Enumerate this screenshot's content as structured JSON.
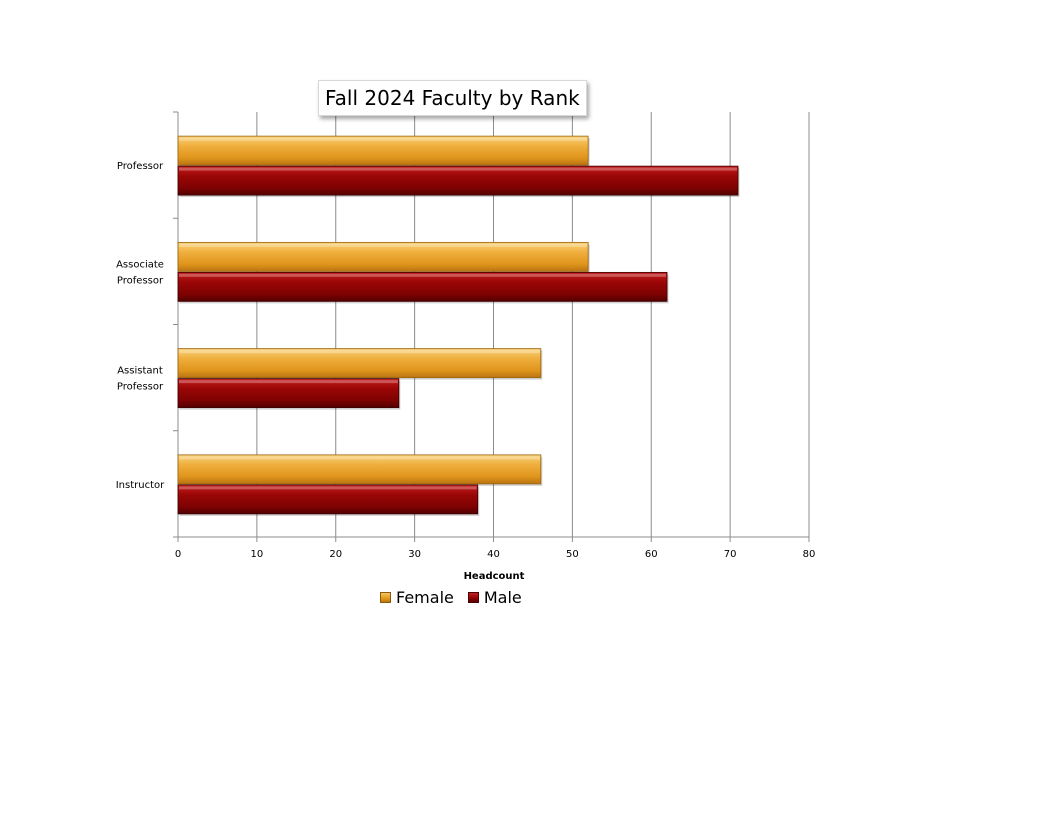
{
  "chart_data": {
    "type": "bar",
    "orientation": "horizontal",
    "title": "Fall 2024 Faculty by Rank",
    "xlabel": "Headcount",
    "ylabel": "",
    "categories": [
      "Professor",
      "Associate Professor",
      "Assistant Professor",
      "Instructor"
    ],
    "category_lines": [
      [
        "Professor"
      ],
      [
        "Associate",
        "Professor"
      ],
      [
        "Assistant",
        "Professor"
      ],
      [
        "Instructor"
      ]
    ],
    "series": [
      {
        "name": "Female",
        "values": [
          52,
          52,
          46,
          46
        ],
        "color": "#e8a030"
      },
      {
        "name": "Male",
        "values": [
          71,
          62,
          28,
          38
        ],
        "color": "#8c0404"
      }
    ],
    "xlim": [
      0,
      80
    ],
    "xticks": [
      0,
      10,
      20,
      30,
      40,
      50,
      60,
      70,
      80
    ],
    "grid": true,
    "legend_position": "bottom"
  }
}
